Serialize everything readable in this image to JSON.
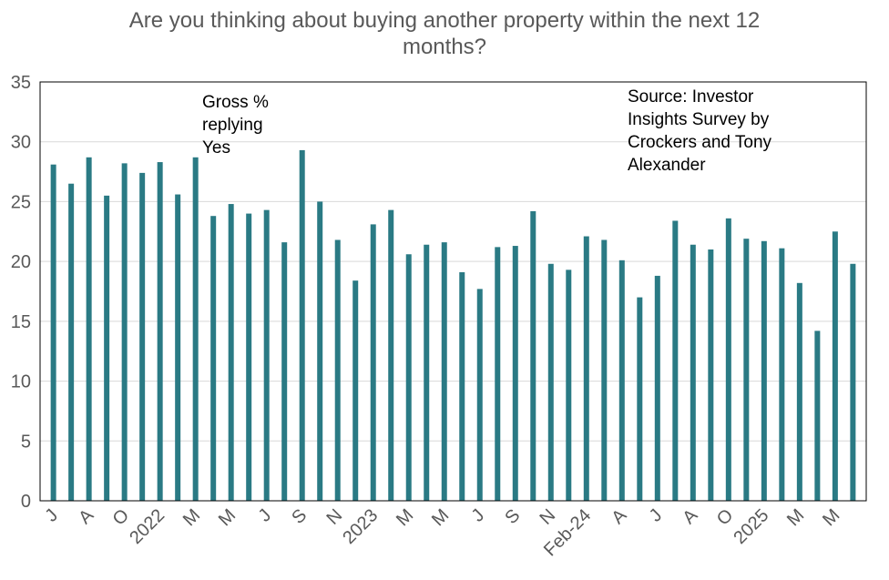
{
  "chart_data": {
    "type": "bar",
    "title_lines": [
      "Are you thinking about buying another property within the next 12",
      "months?"
    ],
    "xlabel": "",
    "ylabel": "",
    "ylim": [
      0,
      35
    ],
    "yticks": [
      0,
      5,
      10,
      15,
      20,
      25,
      30,
      35
    ],
    "grid": true,
    "bar_color": "#2a7a84",
    "gridline_color": "#d9d9d9",
    "categories": [
      "J",
      "",
      "A",
      "",
      "O",
      "",
      "2022",
      "",
      "M",
      "",
      "M",
      "",
      "J",
      "",
      "S",
      "",
      "N",
      "",
      "2023",
      "",
      "M",
      "",
      "M",
      "",
      "J",
      "",
      "S",
      "",
      "N",
      "",
      "Feb-24",
      "",
      "A",
      "",
      "J",
      "",
      "A",
      "",
      "O",
      "",
      "2025",
      "",
      "M",
      "",
      "M",
      ""
    ],
    "values": [
      28.1,
      26.5,
      28.7,
      25.5,
      28.2,
      27.4,
      28.3,
      25.6,
      28.7,
      23.8,
      24.8,
      24.0,
      24.3,
      21.6,
      29.3,
      25.0,
      21.8,
      18.4,
      23.1,
      24.3,
      20.6,
      21.4,
      21.6,
      19.1,
      17.7,
      21.2,
      21.3,
      24.2,
      19.8,
      19.3,
      22.1,
      21.8,
      20.1,
      17.0,
      18.8,
      23.4,
      21.4,
      21.0,
      23.6,
      21.9,
      21.7,
      21.1,
      18.2,
      14.2,
      22.5,
      19.8
    ],
    "annotations": [
      {
        "lines": [
          "Gross %",
          "replying",
          "Yes"
        ]
      },
      {
        "lines": [
          "Source: Investor",
          "Insights Survey by",
          "Crockers and Tony",
          "Alexander"
        ]
      }
    ]
  }
}
